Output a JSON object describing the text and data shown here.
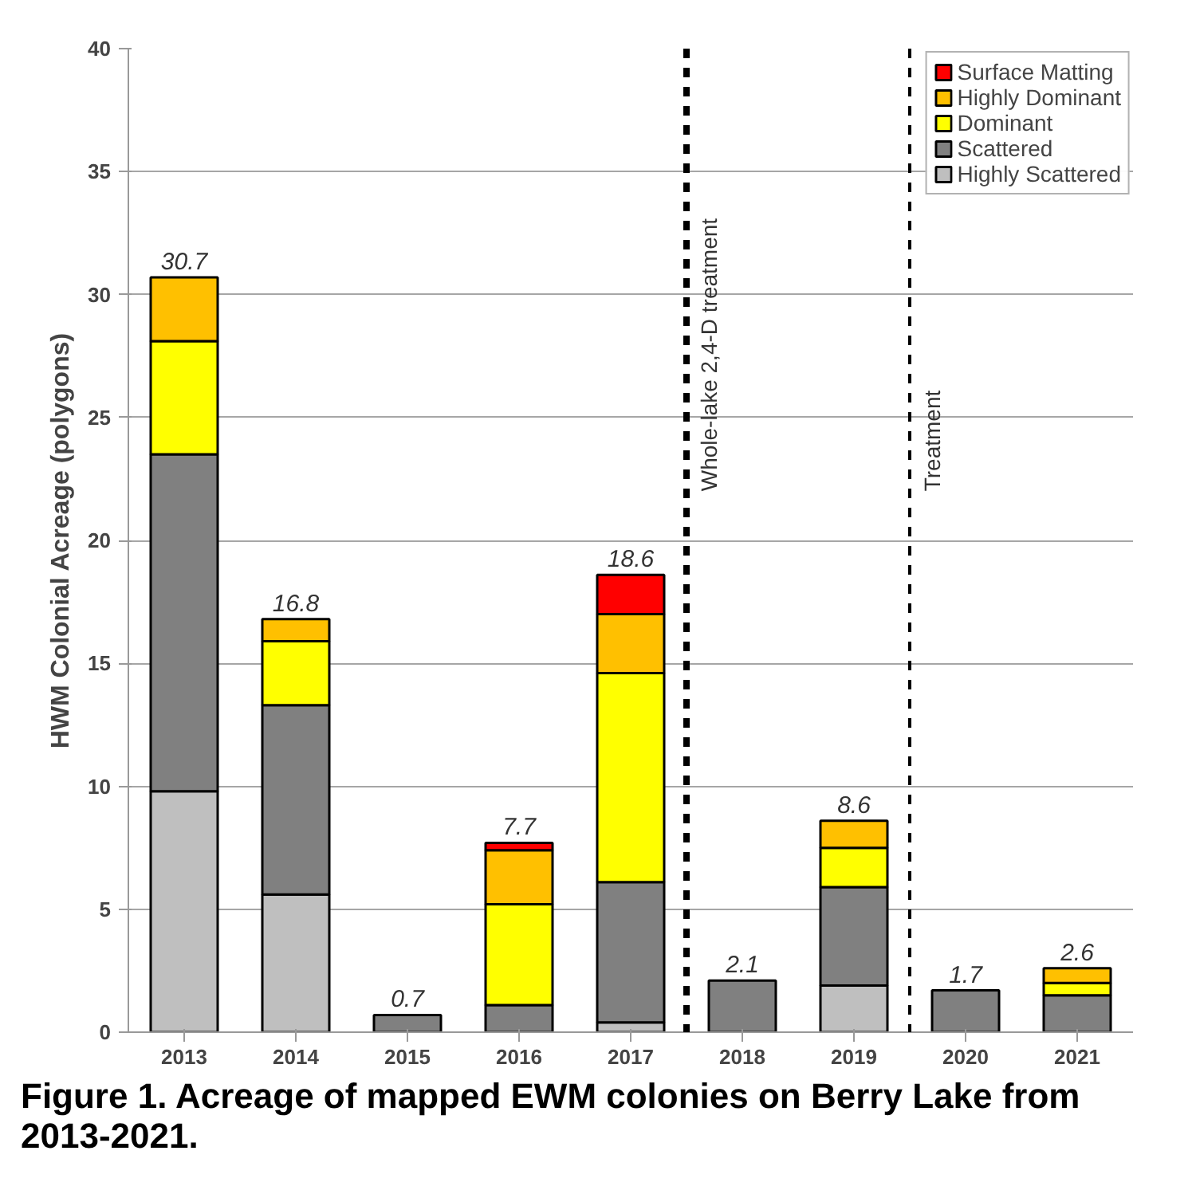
{
  "chart_data": {
    "type": "bar",
    "stacked": true,
    "ylabel": "HWM Colonial Acreage (polygons)",
    "x": [
      2013,
      2014,
      2015,
      2016,
      2017,
      2018,
      2019,
      2020,
      2021
    ],
    "xlim": [
      2012.5,
      2021.5
    ],
    "xticks": [
      2013,
      2014,
      2015,
      2016,
      2017,
      2018,
      2019,
      2020,
      2021
    ],
    "ylim": [
      0,
      40
    ],
    "yticks": [
      0,
      5,
      10,
      15,
      20,
      25,
      30,
      35,
      40
    ],
    "grid": "y",
    "legend": "top right",
    "series": [
      {
        "name": "Highly Scattered",
        "color": "#bfbfbf",
        "values": [
          9.8,
          5.6,
          0,
          0,
          0.4,
          0,
          1.9,
          0,
          0
        ]
      },
      {
        "name": "Scattered",
        "color": "#808080",
        "values": [
          13.7,
          7.7,
          0.7,
          1.1,
          5.7,
          2.1,
          4.0,
          1.7,
          1.5
        ]
      },
      {
        "name": "Dominant",
        "color": "#ffff00",
        "values": [
          4.6,
          2.6,
          0,
          4.1,
          8.5,
          0,
          1.6,
          0,
          0.5
        ]
      },
      {
        "name": "Highly Dominant",
        "color": "#ffc000",
        "values": [
          2.6,
          0.9,
          0,
          2.2,
          2.4,
          0,
          1.1,
          0,
          0.6
        ]
      },
      {
        "name": "Surface Matting",
        "color": "#ff0000",
        "values": [
          0,
          0,
          0,
          0.3,
          1.6,
          0,
          0,
          0,
          0
        ]
      }
    ],
    "totals": [
      "30.7",
      "16.8",
      "0.7",
      "7.7",
      "18.6",
      "2.1",
      "8.6",
      "1.7",
      "2.6"
    ],
    "ref_lines": [
      {
        "axis": "x",
        "value": 2017.5,
        "label": "Whole-lake 2,4-D treatment",
        "color": "#000000",
        "line_style": "dashed"
      },
      {
        "axis": "x",
        "value": 2019.5,
        "label": "Treatment",
        "color": "#000000",
        "line_style": "dashed"
      }
    ],
    "annotations": [
      "Figure 1.  Acreage of mapped EWM colonies on Berry Lake from 2013-2021."
    ]
  }
}
